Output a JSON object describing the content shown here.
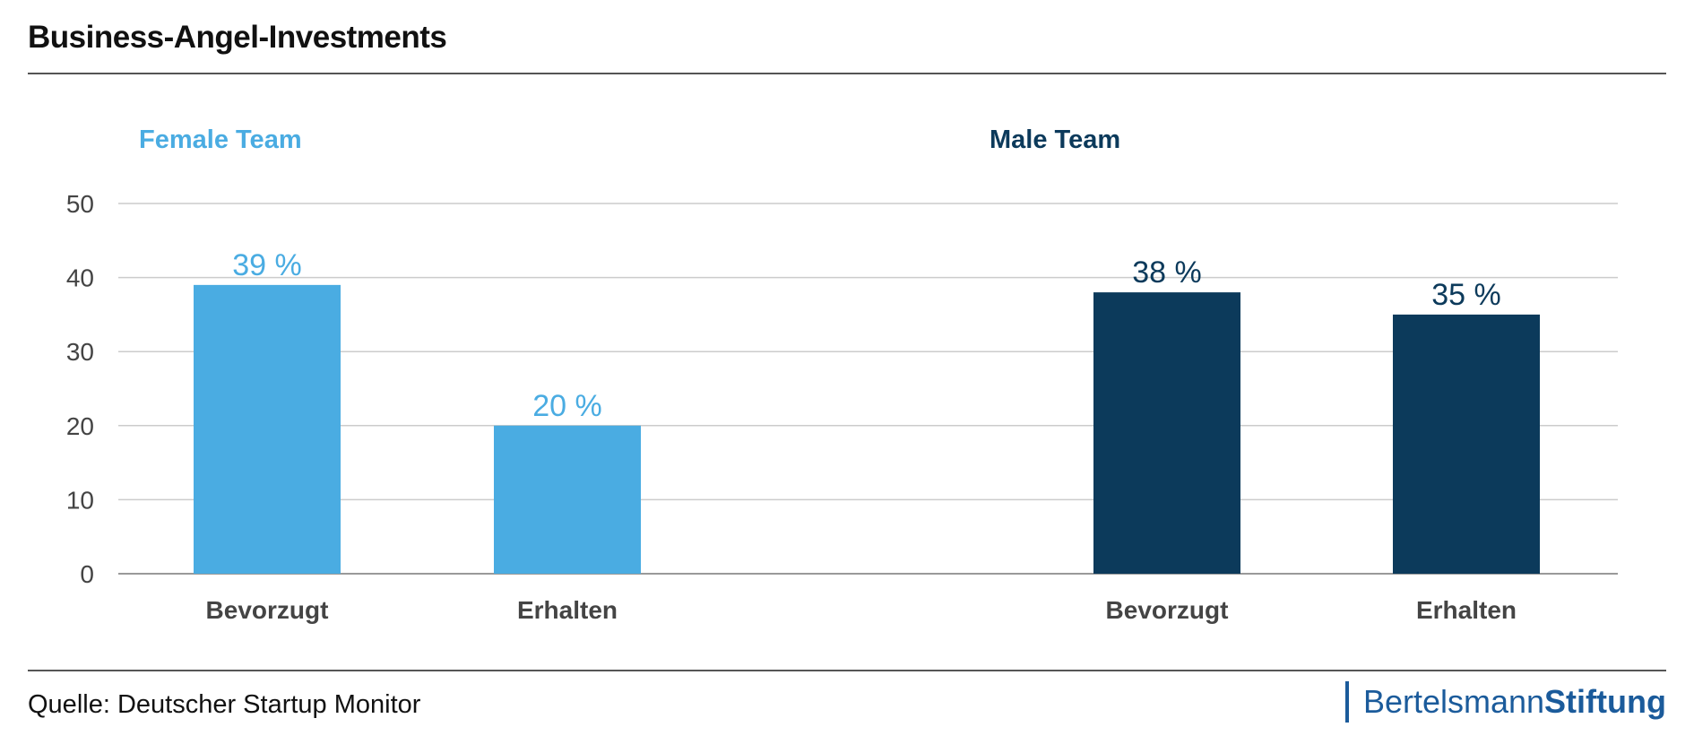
{
  "header": {
    "title": "Business-Angel-Investments"
  },
  "footer": {
    "source": "Quelle: Deutscher Startup Monitor",
    "logo_regular": "Bertelsmann",
    "logo_bold": "Stiftung"
  },
  "colors": {
    "female": "#4aace2",
    "male": "#0c3a5b",
    "grid": "#cccccc",
    "axis": "#444444"
  },
  "chart_data": {
    "type": "bar",
    "title": "Business-Angel-Investments",
    "ylim": [
      0,
      50
    ],
    "yticks": [
      0,
      10,
      20,
      30,
      40,
      50
    ],
    "grid": true,
    "groups": [
      {
        "name": "Female Team",
        "color": "#4aace2",
        "categories": [
          "Bevorzugt",
          "Erhalten"
        ],
        "values": [
          39,
          20
        ],
        "labels": [
          "39 %",
          "20 %"
        ]
      },
      {
        "name": "Male Team",
        "color": "#0c3a5b",
        "categories": [
          "Bevorzugt",
          "Erhalten"
        ],
        "values": [
          38,
          35
        ],
        "labels": [
          "38 %",
          "35 %"
        ]
      }
    ]
  }
}
